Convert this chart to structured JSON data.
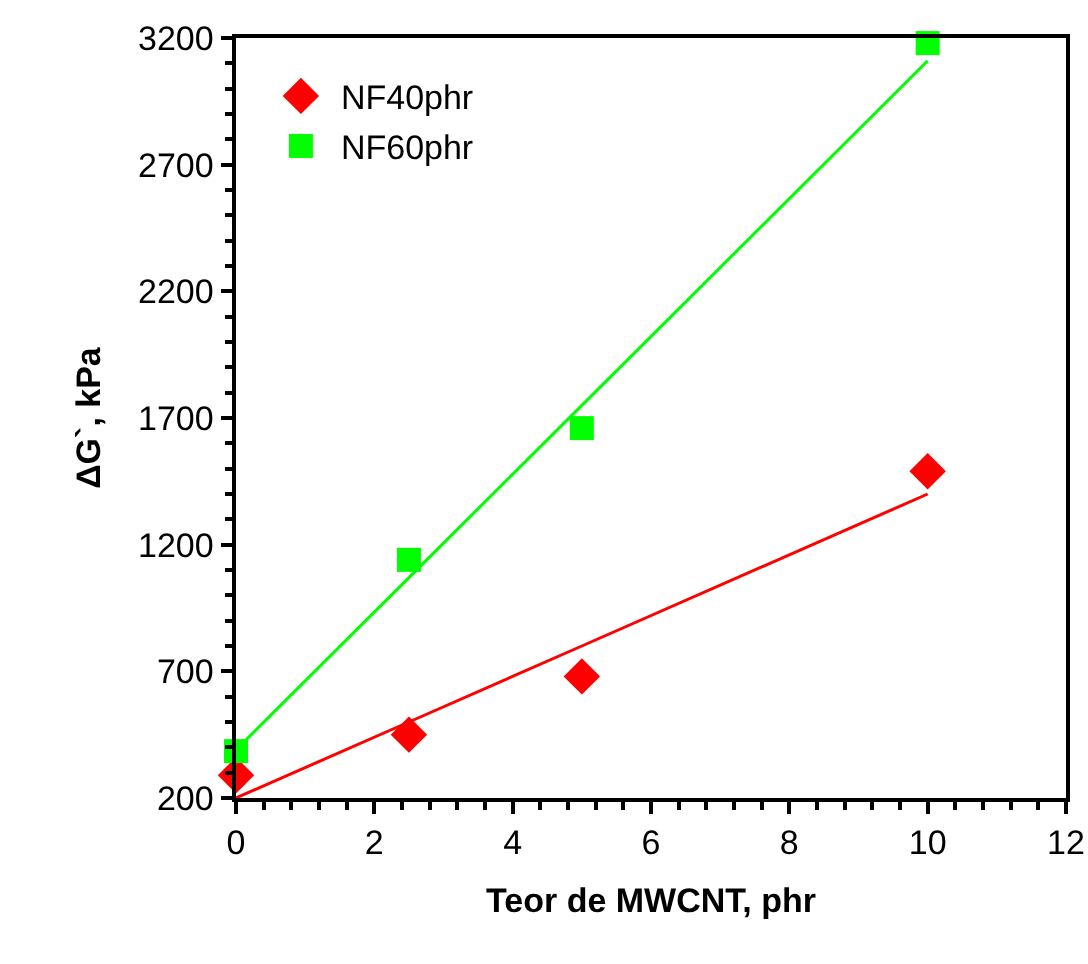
{
  "chart_data": {
    "type": "scatter",
    "xlabel": "Teor de MWCNT, phr",
    "ylabel": "ΔG`, kPa",
    "xlim": [
      0,
      12
    ],
    "xticks": [
      0,
      2,
      4,
      6,
      8,
      10,
      12
    ],
    "ylim": [
      200,
      3200
    ],
    "yticks": [
      200,
      700,
      1200,
      1700,
      2200,
      2700,
      3200
    ],
    "grid": false,
    "legend": "top left",
    "x": [
      0,
      2.5,
      5,
      10
    ],
    "series": [
      {
        "name": "NF40phr",
        "color": "#ff0000",
        "marker": "diamond",
        "values": [
          290,
          450,
          680,
          1490
        ]
      },
      {
        "name": "NF60phr",
        "color": "#00ff00",
        "marker": "square",
        "values": [
          385,
          1140,
          1660,
          3180
        ]
      },
      {
        "type": "line",
        "color": "#ff0000",
        "marker": "none",
        "values": [
          200,
          500,
          800,
          1400
        ]
      },
      {
        "type": "line",
        "color": "#00ff00",
        "marker": "none",
        "values": [
          390,
          1070,
          1750,
          3110
        ]
      }
    ]
  }
}
